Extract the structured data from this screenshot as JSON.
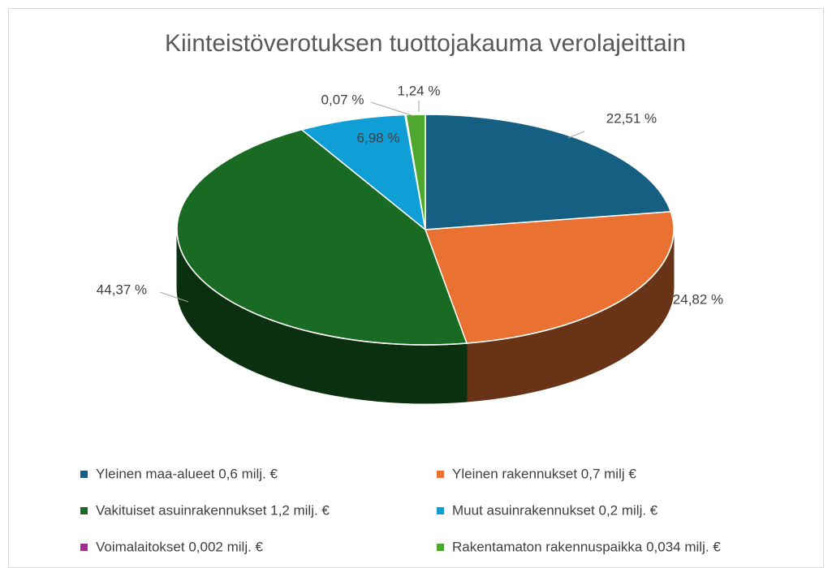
{
  "chart_data": {
    "type": "pie",
    "title": "Kiinteistöverotuksen tuottojakauma verolajeittain",
    "categories": [
      "Yleinen maa-alueet 0,6 milj. €",
      "Yleinen rakennukset 0,7 milj €",
      "Vakituiset asuinrakennukset 1,2 milj. €",
      "Muut asuinrakennukset 0,2 milj. €",
      "Voimalaitokset 0,002 milj. €",
      "Rakentamaton rakennuspaikka 0,034 milj. €"
    ],
    "values": [
      22.51,
      24.82,
      44.37,
      6.98,
      0.07,
      1.24
    ],
    "value_labels": [
      "22,51 %",
      "24,82 %",
      "44,37 %",
      "6,98 %",
      "0,07 %",
      "1,24 %"
    ],
    "colors": [
      "#156082",
      "#e97132",
      "#196b24",
      "#0f9ed5",
      "#a02b93",
      "#4ea72e"
    ],
    "legend": "bottom"
  }
}
